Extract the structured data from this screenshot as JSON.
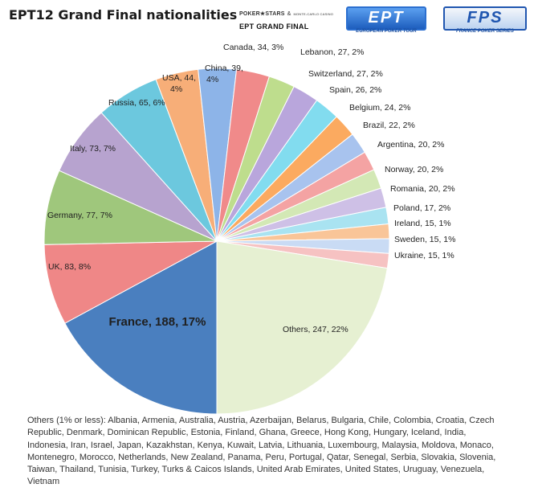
{
  "logos": {
    "pokerstars": {
      "line1": "POKER★STARS",
      "amp": "&",
      "casino": "MONTE-CARLO CASINO",
      "line2": "EPT GRAND FINAL"
    },
    "ept": {
      "mark": "EPT",
      "sub": "EUROPEAN POKER TOUR"
    },
    "fps": {
      "mark": "FPS",
      "sub": "FRANCE POKER SERIES"
    }
  },
  "chart_data": {
    "type": "pie",
    "title": "EPT12 Grand Final nationalities",
    "slices": [
      {
        "label": "France, 188, 17%",
        "value": 188,
        "color": "#4a7fbf",
        "bold": true
      },
      {
        "label": "UK, 83, 8%",
        "value": 83,
        "color": "#ef8787"
      },
      {
        "label": "Germany, 77, 7%",
        "value": 77,
        "color": "#9fc77c"
      },
      {
        "label": "Italy, 73, 7%",
        "value": 73,
        "color": "#b7a3cf"
      },
      {
        "label": "Russia, 65, 6%",
        "value": 65,
        "color": "#6cc8de"
      },
      {
        "label": "USA, 44, 4%",
        "value": 44,
        "color": "#f7ae78"
      },
      {
        "label": "China, 39, 4%",
        "value": 39,
        "color": "#8db4e8"
      },
      {
        "label": "Canada, 34, 3%",
        "value": 34,
        "color": "#f08a8a"
      },
      {
        "label": "Lebanon, 27, 2%",
        "value": 27,
        "color": "#bedd8d"
      },
      {
        "label": "Switzerland, 27, 2%",
        "value": 27,
        "color": "#b9a6dc"
      },
      {
        "label": "Spain, 26, 2%",
        "value": 26,
        "color": "#82dcef"
      },
      {
        "label": "Belgium, 24, 2%",
        "value": 24,
        "color": "#fbaa60"
      },
      {
        "label": "Brazil, 22, 2%",
        "value": 22,
        "color": "#a8c3ee"
      },
      {
        "label": "Argentina, 20, 2%",
        "value": 20,
        "color": "#f4a3a3"
      },
      {
        "label": "Norway, 20, 2%",
        "value": 20,
        "color": "#d3e8b5"
      },
      {
        "label": "Romania, 20, 2%",
        "value": 20,
        "color": "#cec0e6"
      },
      {
        "label": "Poland, 17, 2%",
        "value": 17,
        "color": "#a9e3f1"
      },
      {
        "label": "Ireland, 15, 1%",
        "value": 15,
        "color": "#f9c598"
      },
      {
        "label": "Sweden, 15, 1%",
        "value": 15,
        "color": "#c9dbf4"
      },
      {
        "label": "Ukraine, 15, 1%",
        "value": 15,
        "color": "#f6c2c2"
      },
      {
        "label": "Others, 247, 22%",
        "value": 247,
        "color": "#e6f0d2"
      }
    ]
  },
  "footnote": "Others (1% or less): Albania, Armenia, Australia, Austria, Azerbaijan, Belarus, Bulgaria, Chile, Colombia, Croatia, Czech Republic, Denmark, Dominican Republic, Estonia, Finland, Ghana, Greece, Hong Kong, Hungary, Iceland, India, Indonesia, Iran, Israel, Japan, Kazakhstan, Kenya, Kuwait, Latvia, Lithuania, Luxembourg, Malaysia, Moldova, Monaco, Montenegro, Morocco, Netherlands, New Zealand, Panama, Peru, Portugal, Qatar, Senegal, Serbia, Slovakia, Slovenia, Taiwan, Thailand, Tunisia, Turkey, Turks & Caicos Islands, United Arab Emirates, United States, Uruguay, Venezuela, Vietnam"
}
